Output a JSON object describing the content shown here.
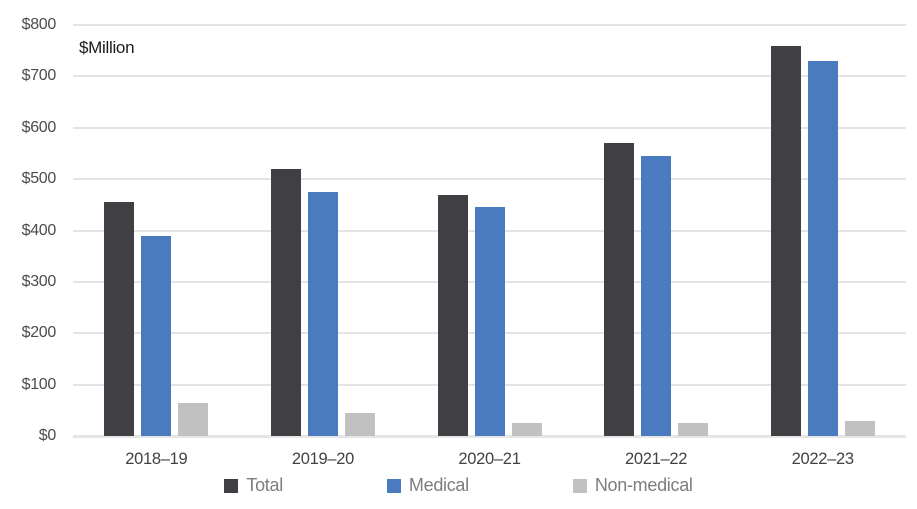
{
  "chart_data": {
    "type": "bar",
    "title": "",
    "unit_label": "$Million",
    "xlabel": "",
    "ylabel": "$Million",
    "ylim": [
      0,
      800
    ],
    "y_step": 100,
    "y_ticks": [
      "$0",
      "$100",
      "$200",
      "$300",
      "$400",
      "$500",
      "$600",
      "$700",
      "$800"
    ],
    "grid": "horizontal",
    "legend_position": "bottom",
    "categories": [
      "2018–19",
      "2019–20",
      "2020–21",
      "2021–22",
      "2022–23"
    ],
    "series": [
      {
        "name": "Total",
        "color": "#3f3f44",
        "values": [
          455,
          520,
          470,
          570,
          760
        ]
      },
      {
        "name": "Medical",
        "color": "#4a7bbf",
        "values": [
          390,
          475,
          445,
          545,
          730
        ]
      },
      {
        "name": "Non-medical",
        "color": "#c1c1c1",
        "values": [
          65,
          45,
          25,
          25,
          30
        ]
      }
    ],
    "colors": {
      "gridline": "#e4e4e4",
      "axis_text": "#4c4c4c",
      "category_text": "#424242",
      "legend_text": "#7d7d7d"
    }
  }
}
